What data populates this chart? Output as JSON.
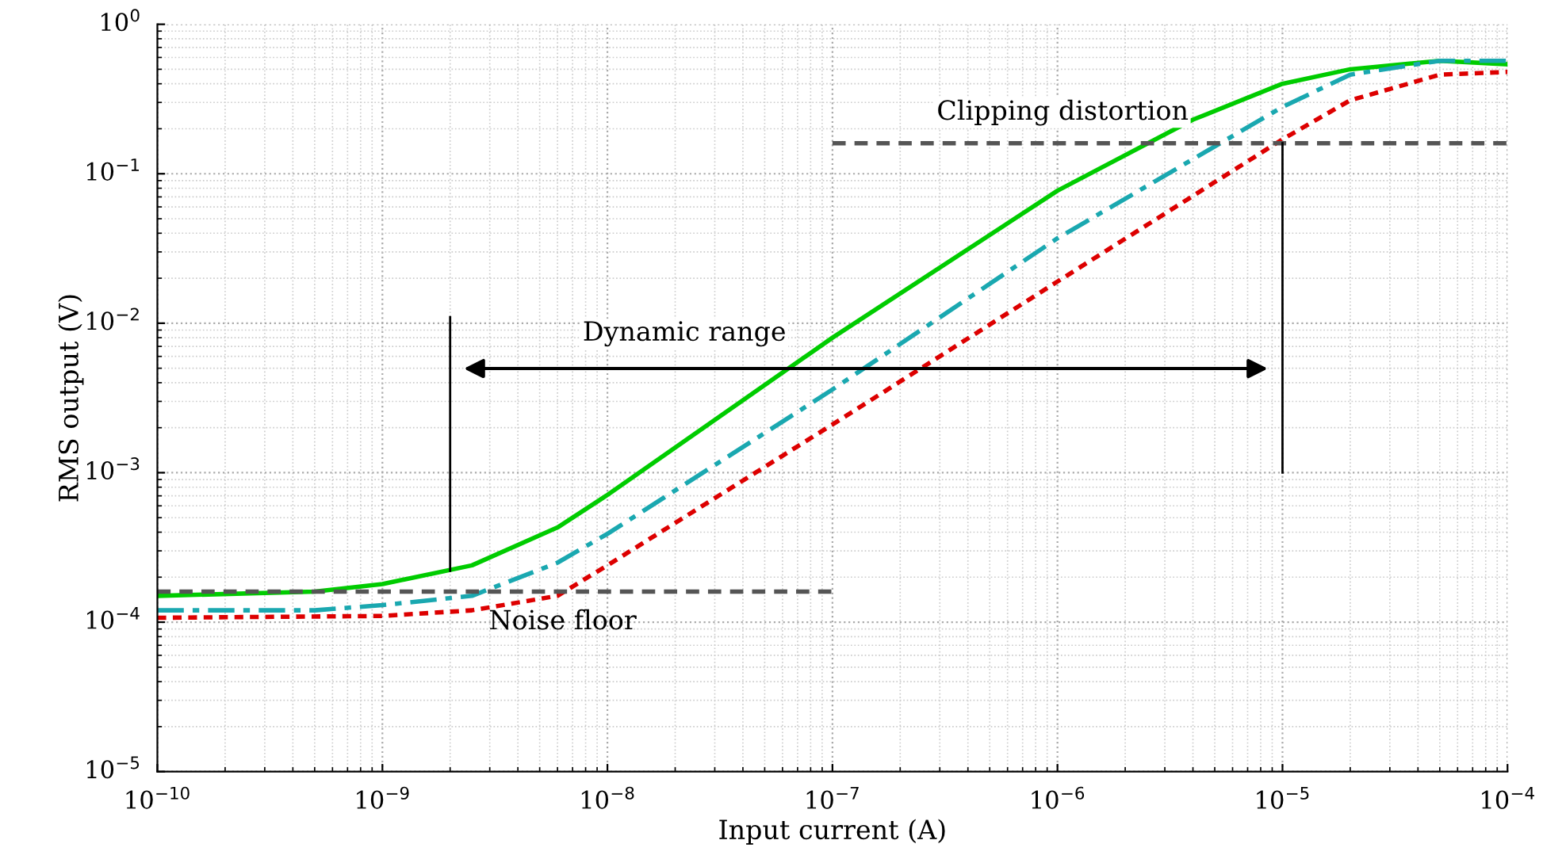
{
  "chart_data": {
    "type": "line",
    "xlabel": "Input current (A)",
    "ylabel": "RMS output (V)",
    "log": "xy",
    "grid": true,
    "xlim": [
      1e-10,
      0.0001
    ],
    "ylim": [
      1e-05,
      1
    ],
    "xticks": [
      {
        "value": 1e-10,
        "label": "10$^{−10}$"
      },
      {
        "value": 1e-09,
        "label": "10$^{−9}$"
      },
      {
        "value": 1e-08,
        "label": "10$^{−8}$"
      },
      {
        "value": 1e-07,
        "label": "10$^{−7}$"
      },
      {
        "value": 1e-06,
        "label": "10$^{−6}$"
      },
      {
        "value": 1e-05,
        "label": "10$^{−5}$"
      },
      {
        "value": 0.0001,
        "label": "10$^{−4}$"
      }
    ],
    "yticks": [
      {
        "value": 1e-05,
        "label": "10$^{−5}$"
      },
      {
        "value": 0.0001,
        "label": "10$^{−4}$"
      },
      {
        "value": 0.001,
        "label": "10$^{−3}$"
      },
      {
        "value": 0.01,
        "label": "10$^{−2}$"
      },
      {
        "value": 0.1,
        "label": "10$^{−1}$"
      },
      {
        "value": 1,
        "label": "10$^{0}$"
      }
    ],
    "series": [
      {
        "color": "#00cc00",
        "line_style": "solid",
        "x": [
          1e-10,
          5e-10,
          1e-09,
          2.5e-09,
          6e-09,
          1e-08,
          1e-07,
          1e-06,
          4e-06,
          1e-05,
          2e-05,
          5e-05,
          0.0001
        ],
        "values": [
          0.00015,
          0.00016,
          0.00018,
          0.00024,
          0.00043,
          0.00071,
          0.008,
          0.077,
          0.23,
          0.4,
          0.5,
          0.57,
          0.54
        ]
      },
      {
        "color": "#1aa8b0",
        "line_style": "dashdot",
        "x": [
          1e-10,
          5e-10,
          1e-09,
          2.5e-09,
          6e-09,
          1e-08,
          1e-07,
          1e-06,
          1e-05,
          2e-05,
          5e-05,
          0.0001
        ],
        "values": [
          0.00012,
          0.00012,
          0.00013,
          0.00015,
          0.00025,
          0.00039,
          0.0036,
          0.037,
          0.28,
          0.46,
          0.57,
          0.57
        ]
      },
      {
        "color": "#dd0000",
        "line_style": "dotted",
        "x": [
          1e-10,
          1e-09,
          2.5e-09,
          6e-09,
          1e-08,
          1e-07,
          1e-06,
          1e-05,
          2e-05,
          5e-05,
          0.0001
        ],
        "values": [
          0.000107,
          0.00011,
          0.00012,
          0.00015,
          0.00024,
          0.0021,
          0.019,
          0.17,
          0.31,
          0.46,
          0.48
        ]
      },
      {
        "name": "Noise floor",
        "color": "#555555",
        "line_style": "dashed",
        "x": [
          1e-10,
          1e-07
        ],
        "values": [
          0.00016,
          0.00016
        ]
      },
      {
        "name": "Clipping distortion",
        "color": "#555555",
        "line_style": "dashed",
        "x": [
          1e-07,
          0.0001
        ],
        "values": [
          0.16,
          0.16
        ]
      },
      {
        "color": "#000000",
        "line_style": "solid",
        "x": [
          2e-09,
          2e-09
        ],
        "values": [
          0.00022,
          0.011
        ]
      },
      {
        "color": "#000000",
        "line_style": "solid",
        "x": [
          1e-05,
          1e-05
        ],
        "values": [
          0.001,
          0.16
        ]
      }
    ],
    "annotations": [
      "Dynamic range"
    ]
  }
}
